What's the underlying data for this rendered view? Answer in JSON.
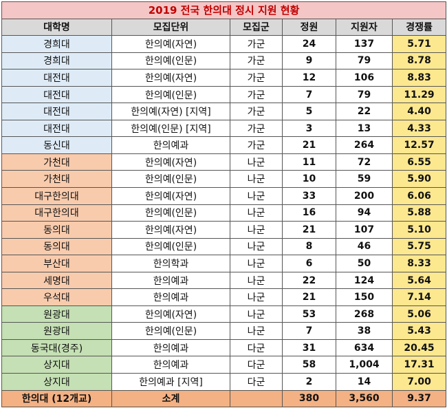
{
  "title": "2019 전국 한의대 정시 지원 현황",
  "headers": [
    "대학명",
    "모집단위",
    "모집군",
    "정원",
    "지원자",
    "경쟁률"
  ],
  "group_colors": {
    "blue": "#deebf7",
    "orange": "#f8cbad",
    "green": "#c5e0b4",
    "rate": "#fce88f",
    "total": "#f4b183",
    "title": "#f5c6c6",
    "title_text": "#c00000"
  },
  "rows": [
    {
      "univ": "경희대",
      "unit": "한의예(자연)",
      "group": "가군",
      "quota": "24",
      "applicants": "137",
      "rate": "5.71",
      "color": "blue"
    },
    {
      "univ": "경희대",
      "unit": "한의예(인문)",
      "group": "가군",
      "quota": "9",
      "applicants": "79",
      "rate": "8.78",
      "color": "blue"
    },
    {
      "univ": "대전대",
      "unit": "한의예(자연)",
      "group": "가군",
      "quota": "12",
      "applicants": "106",
      "rate": "8.83",
      "color": "blue"
    },
    {
      "univ": "대전대",
      "unit": "한의예(인문)",
      "group": "가군",
      "quota": "7",
      "applicants": "79",
      "rate": "11.29",
      "color": "blue"
    },
    {
      "univ": "대전대",
      "unit": "한의예(자연) [지역]",
      "group": "가군",
      "quota": "5",
      "applicants": "22",
      "rate": "4.40",
      "color": "blue"
    },
    {
      "univ": "대전대",
      "unit": "한의예(인문) [지역]",
      "group": "가군",
      "quota": "3",
      "applicants": "13",
      "rate": "4.33",
      "color": "blue"
    },
    {
      "univ": "동신대",
      "unit": "한의예과",
      "group": "가군",
      "quota": "21",
      "applicants": "264",
      "rate": "12.57",
      "color": "blue"
    },
    {
      "univ": "가천대",
      "unit": "한의예(자연)",
      "group": "나군",
      "quota": "11",
      "applicants": "72",
      "rate": "6.55",
      "color": "orange"
    },
    {
      "univ": "가천대",
      "unit": "한의예(인문)",
      "group": "나군",
      "quota": "10",
      "applicants": "59",
      "rate": "5.90",
      "color": "orange"
    },
    {
      "univ": "대구한의대",
      "unit": "한의예(자연)",
      "group": "나군",
      "quota": "33",
      "applicants": "200",
      "rate": "6.06",
      "color": "orange"
    },
    {
      "univ": "대구한의대",
      "unit": "한의예(인문)",
      "group": "나군",
      "quota": "16",
      "applicants": "94",
      "rate": "5.88",
      "color": "orange"
    },
    {
      "univ": "동의대",
      "unit": "한의예(자연)",
      "group": "나군",
      "quota": "21",
      "applicants": "107",
      "rate": "5.10",
      "color": "orange"
    },
    {
      "univ": "동의대",
      "unit": "한의예(인문)",
      "group": "나군",
      "quota": "8",
      "applicants": "46",
      "rate": "5.75",
      "color": "orange"
    },
    {
      "univ": "부산대",
      "unit": "한의학과",
      "group": "나군",
      "quota": "6",
      "applicants": "50",
      "rate": "8.33",
      "color": "orange"
    },
    {
      "univ": "세명대",
      "unit": "한의예과",
      "group": "나군",
      "quota": "22",
      "applicants": "124",
      "rate": "5.64",
      "color": "orange"
    },
    {
      "univ": "우석대",
      "unit": "한의예과",
      "group": "나군",
      "quota": "21",
      "applicants": "150",
      "rate": "7.14",
      "color": "orange"
    },
    {
      "univ": "원광대",
      "unit": "한의예(자연)",
      "group": "나군",
      "quota": "53",
      "applicants": "268",
      "rate": "5.06",
      "color": "green"
    },
    {
      "univ": "원광대",
      "unit": "한의예(인문)",
      "group": "나군",
      "quota": "7",
      "applicants": "38",
      "rate": "5.43",
      "color": "green"
    },
    {
      "univ": "동국대(경주)",
      "unit": "한의예과",
      "group": "다군",
      "quota": "31",
      "applicants": "634",
      "rate": "20.45",
      "color": "green"
    },
    {
      "univ": "상지대",
      "unit": "한의예과",
      "group": "다군",
      "quota": "58",
      "applicants": "1,004",
      "rate": "17.31",
      "color": "green"
    },
    {
      "univ": "상지대",
      "unit": "한의예과 [지역]",
      "group": "다군",
      "quota": "2",
      "applicants": "14",
      "rate": "7.00",
      "color": "green"
    }
  ],
  "total": {
    "univ": "한의대 (12개교)",
    "unit": "소계",
    "group": "",
    "quota": "380",
    "applicants": "3,560",
    "rate": "9.37"
  }
}
